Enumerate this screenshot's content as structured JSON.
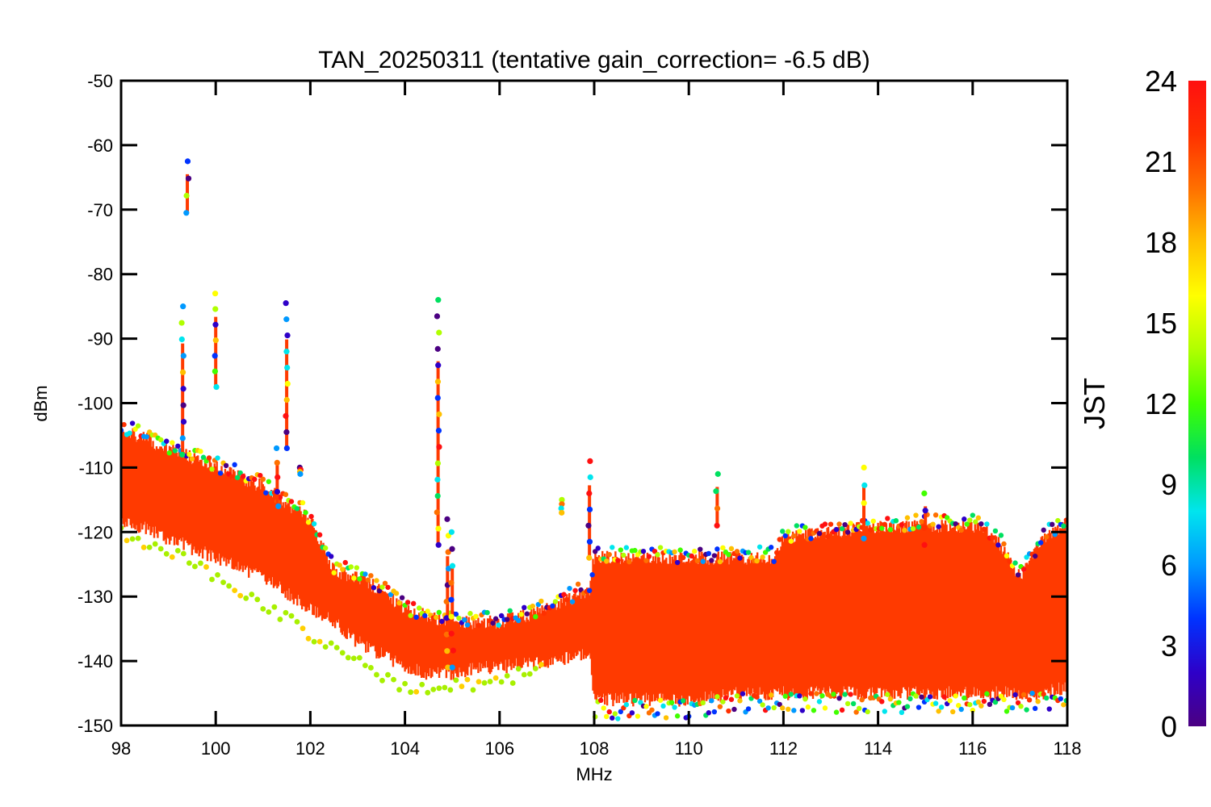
{
  "chart_data": {
    "type": "scatter",
    "title": "TAN_20250311 (tentative gain_correction= -6.5 dB)",
    "xlabel": "MHz",
    "ylabel": "dBm",
    "xlim": [
      98,
      118
    ],
    "ylim": [
      -150,
      -50
    ],
    "x_ticks": [
      "98",
      "100",
      "102",
      "104",
      "106",
      "108",
      "110",
      "112",
      "114",
      "116",
      "118"
    ],
    "y_ticks": [
      "-50",
      "-60",
      "-70",
      "-80",
      "-90",
      "-100",
      "-110",
      "-120",
      "-130",
      "-140",
      "-150"
    ],
    "grid": false,
    "colorbar": {
      "label": "JST",
      "range": [
        0,
        24
      ],
      "ticks": [
        "0",
        "3",
        "6",
        "9",
        "12",
        "15",
        "18",
        "21",
        "24"
      ],
      "colormap": [
        "#4b0082",
        "#2e00c8",
        "#0033ff",
        "#0099ff",
        "#00e5ee",
        "#00e060",
        "#40ff00",
        "#b0ff00",
        "#ffff00",
        "#ffc000",
        "#ff7000",
        "#ff3000",
        "#ff1010"
      ],
      "dominant_color": "#ff3a00"
    },
    "baseline_floor": [
      {
        "x": 98.0,
        "upper": -104,
        "lower": -118
      },
      {
        "x": 99.0,
        "upper": -107,
        "lower": -121
      },
      {
        "x": 100.0,
        "upper": -110,
        "lower": -124
      },
      {
        "x": 101.0,
        "upper": -113,
        "lower": -127
      },
      {
        "x": 102.0,
        "upper": -118,
        "lower": -132
      },
      {
        "x": 102.5,
        "upper": -126,
        "lower": -134
      },
      {
        "x": 103.0,
        "upper": -127,
        "lower": -137
      },
      {
        "x": 103.5,
        "upper": -129,
        "lower": -139
      },
      {
        "x": 104.0,
        "upper": -132,
        "lower": -141
      },
      {
        "x": 104.5,
        "upper": -133,
        "lower": -142
      },
      {
        "x": 105.0,
        "upper": -134,
        "lower": -142
      },
      {
        "x": 105.5,
        "upper": -134,
        "lower": -141
      },
      {
        "x": 106.0,
        "upper": -134,
        "lower": -141
      },
      {
        "x": 107.0,
        "upper": -132,
        "lower": -140
      },
      {
        "x": 107.9,
        "upper": -129,
        "lower": -139
      },
      {
        "x": 108.0,
        "upper": -124,
        "lower": -146
      },
      {
        "x": 110.0,
        "upper": -124,
        "lower": -146
      },
      {
        "x": 111.0,
        "upper": -124,
        "lower": -145
      },
      {
        "x": 111.8,
        "upper": -124,
        "lower": -145
      },
      {
        "x": 112.0,
        "upper": -121,
        "lower": -145
      },
      {
        "x": 114.0,
        "upper": -119,
        "lower": -145
      },
      {
        "x": 116.0,
        "upper": -119,
        "lower": -145
      },
      {
        "x": 116.5,
        "upper": -121,
        "lower": -145
      },
      {
        "x": 117.0,
        "upper": -127,
        "lower": -145
      },
      {
        "x": 117.5,
        "upper": -121,
        "lower": -145
      },
      {
        "x": 118.0,
        "upper": -119,
        "lower": -144
      }
    ],
    "peaks": [
      {
        "x": 99.3,
        "y_top": -85,
        "y_bottom": -108
      },
      {
        "x": 99.4,
        "y_top": -62.5,
        "y_bottom": -70.5
      },
      {
        "x": 100.0,
        "y_top": -83,
        "y_bottom": -97.5
      },
      {
        "x": 101.3,
        "y_top": -107,
        "y_bottom": -116
      },
      {
        "x": 101.5,
        "y_top": -84.5,
        "y_bottom": -107
      },
      {
        "x": 101.8,
        "y_top": -110,
        "y_bottom": -111
      },
      {
        "x": 104.7,
        "y_top": -84,
        "y_bottom": -122
      },
      {
        "x": 104.9,
        "y_top": -118,
        "y_bottom": -141
      },
      {
        "x": 105.0,
        "y_top": -120,
        "y_bottom": -141
      },
      {
        "x": 107.3,
        "y_top": -115,
        "y_bottom": -117
      },
      {
        "x": 107.9,
        "y_top": -109,
        "y_bottom": -124
      },
      {
        "x": 110.6,
        "y_top": -111,
        "y_bottom": -119
      },
      {
        "x": 113.7,
        "y_top": -110,
        "y_bottom": -121
      },
      {
        "x": 115.0,
        "y_top": -114,
        "y_bottom": -122
      }
    ],
    "low_outlier_trace": [
      {
        "x": 98.0,
        "y": -120
      },
      {
        "x": 99.0,
        "y": -123
      },
      {
        "x": 100.0,
        "y": -127
      },
      {
        "x": 101.0,
        "y": -131
      },
      {
        "x": 102.0,
        "y": -136
      },
      {
        "x": 103.0,
        "y": -140
      },
      {
        "x": 104.0,
        "y": -144
      },
      {
        "x": 105.0,
        "y": -144
      },
      {
        "x": 106.0,
        "y": -143
      },
      {
        "x": 107.0,
        "y": -141
      }
    ]
  }
}
